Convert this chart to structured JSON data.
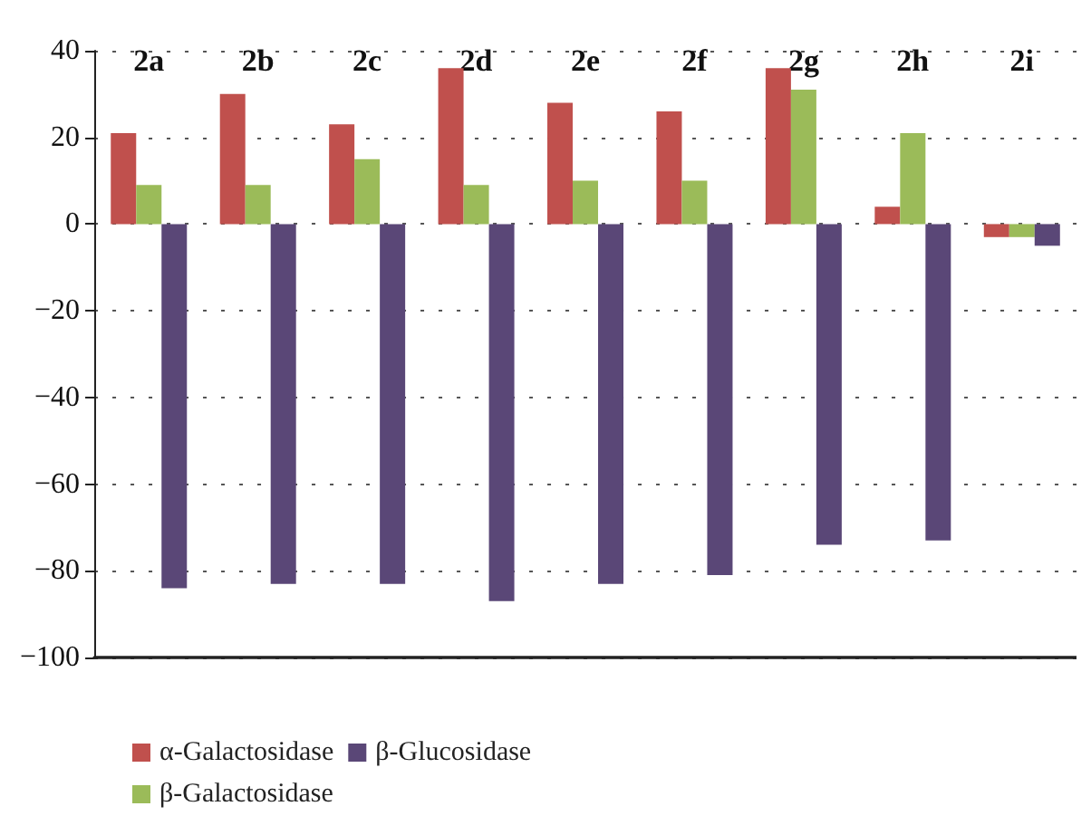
{
  "chart_data": {
    "type": "bar",
    "categories": [
      "2a",
      "2b",
      "2c",
      "2d",
      "2e",
      "2f",
      "2g",
      "2h",
      "2i"
    ],
    "series": [
      {
        "name": "α-Galactosidase",
        "color": "#c0504d",
        "values": [
          21,
          30,
          23,
          36,
          28,
          26,
          36,
          4,
          -3
        ]
      },
      {
        "name": "β-Galactosidase",
        "color": "#9bbb59",
        "values": [
          9,
          9,
          15,
          9,
          10,
          10,
          31,
          21,
          -3
        ]
      },
      {
        "name": "β-Glucosidase",
        "color": "#5a4777",
        "values": [
          -84,
          -83,
          -83,
          -87,
          -83,
          -81,
          -74,
          -73,
          -5
        ]
      }
    ],
    "ylim": [
      -100,
      40
    ],
    "yticks": [
      -100,
      -80,
      -60,
      -40,
      -20,
      0,
      20,
      40
    ],
    "grid": "y",
    "legend": "bottom"
  }
}
